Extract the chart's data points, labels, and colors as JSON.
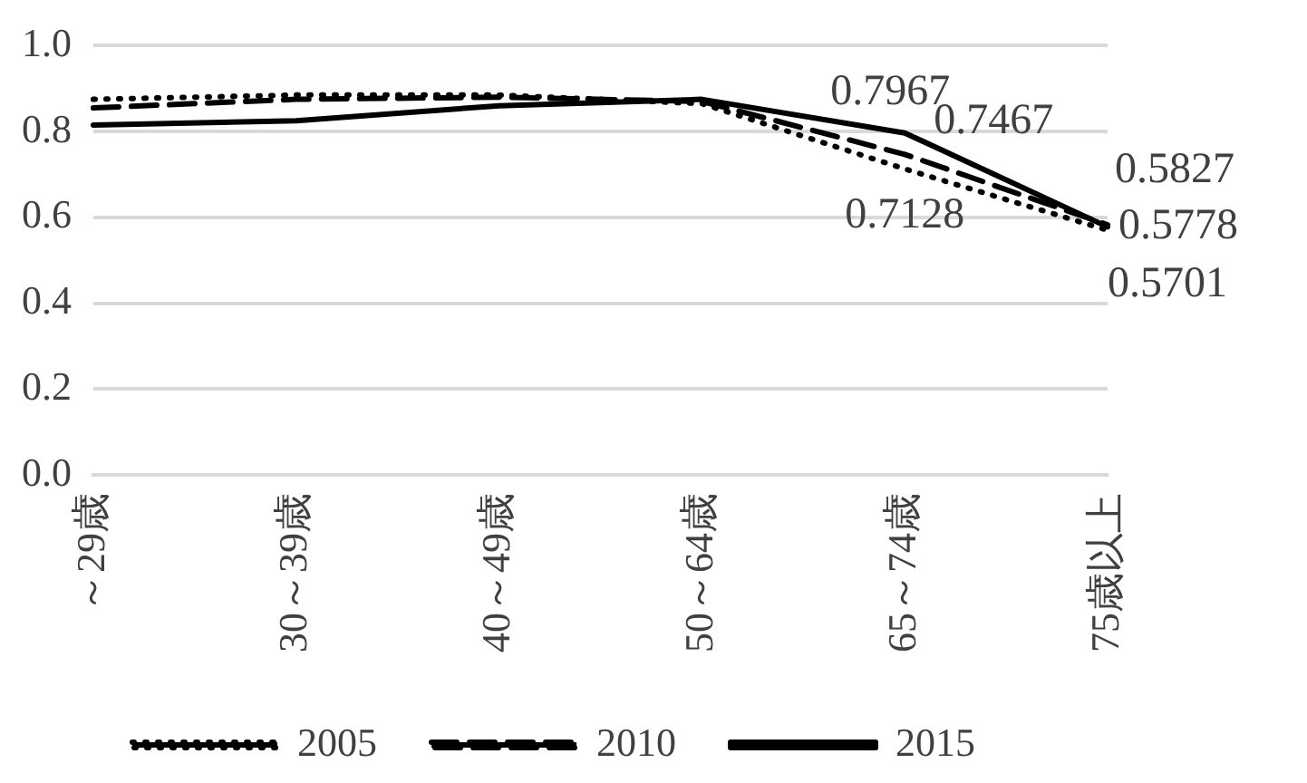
{
  "chart_data": {
    "type": "line",
    "categories": [
      "～29歳",
      "30～39歳",
      "40～49歳",
      "50～64歳",
      "65～74歳",
      "75歳以上"
    ],
    "series": [
      {
        "name": "2005",
        "color": "#000000",
        "line_style": "dotted",
        "values": [
          0.875,
          0.885,
          0.885,
          0.865,
          0.7128,
          0.5701
        ],
        "value_labels": [
          null,
          null,
          null,
          null,
          "0.7128",
          "0.5701"
        ]
      },
      {
        "name": "2010",
        "color": "#000000",
        "line_style": "dashed",
        "values": [
          0.855,
          0.875,
          0.88,
          0.87,
          0.7467,
          0.5827
        ],
        "value_labels": [
          null,
          null,
          null,
          null,
          "0.7467",
          "0.5827"
        ]
      },
      {
        "name": "2015",
        "color": "#000000",
        "line_style": "solid",
        "values": [
          0.815,
          0.825,
          0.86,
          0.875,
          0.7967,
          0.5778
        ],
        "value_labels": [
          null,
          null,
          null,
          null,
          "0.7967",
          "0.5778"
        ]
      }
    ],
    "ylim": [
      0,
      1.0
    ],
    "yticks": [
      {
        "value": 0,
        "label": "0.0"
      },
      {
        "value": 0.2,
        "label": "0.2"
      },
      {
        "value": 0.4,
        "label": "0.4"
      },
      {
        "value": 0.6,
        "label": "0.6"
      },
      {
        "value": 0.8,
        "label": "0.8"
      },
      {
        "value": 1.0,
        "label": "1.0"
      }
    ],
    "grid": "y",
    "legend": "bottom",
    "marker": "none"
  }
}
